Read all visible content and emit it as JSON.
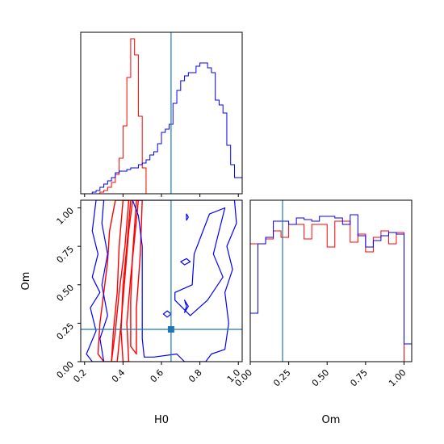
{
  "chart_data": [
    {
      "type": "histogram",
      "panel": "H0 marginal",
      "x_range": [
        0.18,
        1.02
      ],
      "xticks": [
        "0.2",
        "0.4",
        "0.6",
        "0.8",
        "1.0"
      ],
      "truth_line_x": 0.65,
      "series": [
        {
          "color": "#ff0000",
          "bin_edges": [
            0.28,
            0.3,
            0.32,
            0.34,
            0.36,
            0.38,
            0.4,
            0.42,
            0.44,
            0.46,
            0.48,
            0.5,
            0.52
          ],
          "heights": [
            0.01,
            0.02,
            0.04,
            0.07,
            0.12,
            0.22,
            0.42,
            0.72,
            0.96,
            0.86,
            0.48,
            0.16
          ]
        },
        {
          "color": "#0000ff",
          "bin_edges": [
            0.18,
            0.2,
            0.22,
            0.24,
            0.26,
            0.28,
            0.3,
            0.32,
            0.34,
            0.36,
            0.38,
            0.4,
            0.42,
            0.44,
            0.46,
            0.48,
            0.5,
            0.52,
            0.54,
            0.56,
            0.58,
            0.6,
            0.62,
            0.64,
            0.66,
            0.68,
            0.7,
            0.72,
            0.74,
            0.76,
            0.78,
            0.8,
            0.82,
            0.84,
            0.86,
            0.88,
            0.9,
            0.92,
            0.94,
            0.96,
            0.98,
            1.0,
            1.02
          ],
          "heights": [
            0.0,
            0.0,
            0.0,
            0.01,
            0.02,
            0.04,
            0.06,
            0.08,
            0.1,
            0.13,
            0.14,
            0.14,
            0.15,
            0.16,
            0.16,
            0.18,
            0.19,
            0.21,
            0.24,
            0.26,
            0.31,
            0.38,
            0.4,
            0.43,
            0.56,
            0.64,
            0.7,
            0.73,
            0.75,
            0.75,
            0.79,
            0.81,
            0.81,
            0.78,
            0.75,
            0.58,
            0.55,
            0.5,
            0.3,
            0.18,
            0.1,
            0.1
          ]
        }
      ]
    },
    {
      "type": "contour",
      "panel": "Om vs H0",
      "x_range": [
        0.18,
        1.02
      ],
      "y_range": [
        0.0,
        1.05
      ],
      "xlabel": "H0",
      "ylabel": "Om",
      "xticks": [
        "0.2",
        "0.4",
        "0.6",
        "0.8",
        "1.0"
      ],
      "yticks": [
        "0.00",
        "0.25",
        "0.50",
        "0.75",
        "1.00"
      ],
      "truth_point": [
        0.65,
        0.21
      ],
      "series": [
        {
          "color": "#ff0000",
          "contours": [
            [
              [
                0.36,
                1.05
              ],
              [
                0.33,
                0.85
              ],
              [
                0.32,
                0.65
              ],
              [
                0.3,
                0.45
              ],
              [
                0.28,
                0.25
              ],
              [
                0.27,
                0.05
              ],
              [
                0.3,
                0.0
              ],
              [
                0.34,
                0.0
              ],
              [
                0.36,
                0.2
              ],
              [
                0.38,
                0.45
              ],
              [
                0.41,
                0.75
              ],
              [
                0.43,
                1.05
              ]
            ],
            [
              [
                0.4,
                1.05
              ],
              [
                0.38,
                0.75
              ],
              [
                0.37,
                0.45
              ],
              [
                0.35,
                0.2
              ],
              [
                0.34,
                0.0
              ],
              [
                0.37,
                0.0
              ],
              [
                0.39,
                0.25
              ],
              [
                0.41,
                0.55
              ],
              [
                0.43,
                0.85
              ],
              [
                0.45,
                1.05
              ]
            ],
            [
              [
                0.44,
                1.05
              ],
              [
                0.42,
                0.75
              ],
              [
                0.4,
                0.5
              ],
              [
                0.39,
                0.2
              ],
              [
                0.4,
                0.0
              ],
              [
                0.43,
                0.0
              ],
              [
                0.42,
                0.25
              ],
              [
                0.44,
                0.55
              ],
              [
                0.46,
                0.8
              ],
              [
                0.48,
                1.05
              ]
            ],
            [
              [
                0.47,
                1.05
              ],
              [
                0.45,
                0.7
              ],
              [
                0.44,
                0.4
              ],
              [
                0.44,
                0.1
              ],
              [
                0.47,
                0.05
              ],
              [
                0.47,
                0.35
              ],
              [
                0.49,
                0.7
              ],
              [
                0.5,
                1.05
              ]
            ]
          ]
        },
        {
          "color": "#0000ff",
          "contours": [
            [
              [
                0.26,
                1.05
              ],
              [
                0.24,
                0.85
              ],
              [
                0.27,
                0.7
              ],
              [
                0.24,
                0.55
              ],
              [
                0.28,
                0.45
              ],
              [
                0.23,
                0.35
              ],
              [
                0.26,
                0.2
              ],
              [
                0.21,
                0.05
              ],
              [
                0.24,
                0.0
              ],
              [
                0.3,
                0.0
              ],
              [
                0.28,
                0.15
              ],
              [
                0.32,
                0.3
              ],
              [
                0.29,
                0.5
              ],
              [
                0.32,
                0.7
              ],
              [
                0.29,
                0.9
              ],
              [
                0.3,
                1.05
              ]
            ],
            [
              [
                0.45,
                1.05
              ],
              [
                0.48,
                0.95
              ],
              [
                0.5,
                0.75
              ],
              [
                0.5,
                0.45
              ],
              [
                0.5,
                0.15
              ],
              [
                0.51,
                0.03
              ],
              [
                0.56,
                0.03
              ],
              [
                0.68,
                0.05
              ],
              [
                0.72,
                0.0
              ],
              [
                0.83,
                0.0
              ],
              [
                0.86,
                0.05
              ],
              [
                0.93,
                0.08
              ],
              [
                0.95,
                0.25
              ],
              [
                0.93,
                0.45
              ],
              [
                0.97,
                0.6
              ],
              [
                0.94,
                0.75
              ],
              [
                0.99,
                0.9
              ],
              [
                0.98,
                1.05
              ]
            ],
            [
              [
                0.61,
                0.31
              ],
              [
                0.63,
                0.29
              ],
              [
                0.65,
                0.31
              ],
              [
                0.63,
                0.33
              ]
            ],
            [
              [
                0.72,
                0.63
              ],
              [
                0.75,
                0.65
              ],
              [
                0.73,
                0.67
              ],
              [
                0.7,
                0.65
              ]
            ],
            [
              [
                0.72,
                0.32
              ],
              [
                0.74,
                0.36
              ],
              [
                0.72,
                0.4
              ],
              [
                0.73,
                0.36
              ]
            ],
            [
              [
                0.73,
                0.92
              ],
              [
                0.74,
                0.94
              ],
              [
                0.73,
                0.96
              ]
            ],
            [
              [
                0.67,
                0.45
              ],
              [
                0.76,
                0.5
              ],
              [
                0.77,
                0.7
              ],
              [
                0.81,
                0.83
              ],
              [
                0.85,
                0.96
              ],
              [
                0.93,
                1.0
              ],
              [
                0.9,
                0.85
              ],
              [
                0.87,
                0.7
              ],
              [
                0.92,
                0.55
              ],
              [
                0.84,
                0.4
              ],
              [
                0.75,
                0.3
              ],
              [
                0.67,
                0.4
              ]
            ]
          ]
        }
      ]
    },
    {
      "type": "histogram",
      "panel": "Om marginal",
      "x_range": [
        0.0,
        1.05
      ],
      "xlabel": "Om",
      "xticks": [
        "0.00",
        "0.25",
        "0.50",
        "0.75",
        "1.00"
      ],
      "truth_line_x": 0.21,
      "series": [
        {
          "color": "#ff0000",
          "bin_edges": [
            0.0,
            0.05,
            0.1,
            0.15,
            0.2,
            0.25,
            0.3,
            0.35,
            0.4,
            0.45,
            0.5,
            0.55,
            0.6,
            0.65,
            0.7,
            0.75,
            0.8,
            0.85,
            0.9,
            0.95,
            1.0
          ],
          "heights": [
            0.73,
            0.73,
            0.76,
            0.81,
            0.77,
            0.85,
            0.85,
            0.76,
            0.85,
            0.85,
            0.71,
            0.87,
            0.87,
            0.74,
            0.79,
            0.68,
            0.77,
            0.81,
            0.73,
            0.8
          ]
        },
        {
          "color": "#0000ff",
          "bin_edges": [
            0.0,
            0.05,
            0.1,
            0.15,
            0.2,
            0.25,
            0.3,
            0.35,
            0.4,
            0.45,
            0.5,
            0.55,
            0.6,
            0.65,
            0.7,
            0.75,
            0.8,
            0.85,
            0.9,
            0.95,
            1.0,
            1.05
          ],
          "heights": [
            0.3,
            0.73,
            0.77,
            0.87,
            0.87,
            0.85,
            0.89,
            0.88,
            0.87,
            0.9,
            0.9,
            0.89,
            0.85,
            0.91,
            0.78,
            0.71,
            0.75,
            0.78,
            0.8,
            0.79,
            0.11
          ]
        }
      ]
    }
  ]
}
